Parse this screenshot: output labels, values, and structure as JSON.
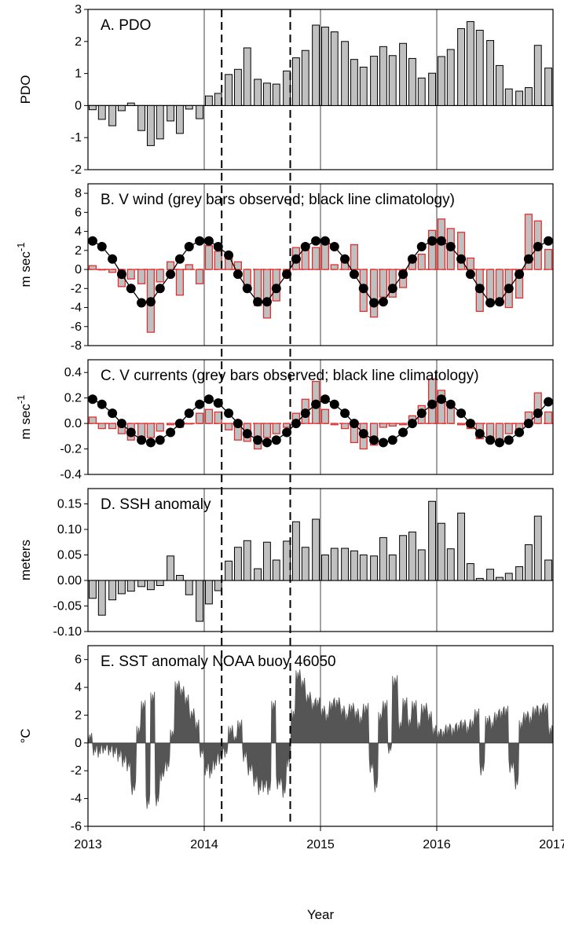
{
  "figure": {
    "xlabel": "Year",
    "xticks": [
      2013,
      2014,
      2015,
      2016,
      2017
    ],
    "xlim": [
      2013,
      2017
    ],
    "vertical_dashed_lines": [
      2014.15,
      2014.74
    ],
    "colors": {
      "bar_fill": "#c0c0c0",
      "bar_outline_gray": "#000000",
      "bar_outline_red": "#e03030",
      "zero_line_red": "#e03030",
      "climatology": "#000000",
      "sst_fill": "#555555"
    }
  },
  "chart_data": [
    {
      "type": "bar",
      "title": "A. PDO",
      "ylabel": "PDO",
      "ylim": [
        -2,
        3
      ],
      "yticks": [
        "-2",
        "-1",
        "0",
        "1",
        "2",
        "3"
      ],
      "x": [
        2013.04,
        2013.12,
        2013.21,
        2013.29,
        2013.37,
        2013.46,
        2013.54,
        2013.62,
        2013.71,
        2013.79,
        2013.87,
        2013.96,
        2014.04,
        2014.12,
        2014.21,
        2014.29,
        2014.37,
        2014.46,
        2014.54,
        2014.62,
        2014.71,
        2014.79,
        2014.87,
        2014.96,
        2015.04,
        2015.12,
        2015.21,
        2015.29,
        2015.37,
        2015.46,
        2015.54,
        2015.62,
        2015.71,
        2015.79,
        2015.87,
        2015.96,
        2016.04,
        2016.12,
        2016.21,
        2016.29,
        2016.37,
        2016.46,
        2016.54,
        2016.62,
        2016.71,
        2016.79,
        2016.87,
        2016.96
      ],
      "values": [
        -0.13,
        -0.43,
        -0.63,
        -0.16,
        0.08,
        -0.78,
        -1.25,
        -1.04,
        -0.48,
        -0.87,
        -0.11,
        -0.41,
        0.3,
        0.38,
        0.97,
        1.13,
        1.8,
        0.82,
        0.7,
        0.67,
        1.08,
        1.49,
        1.72,
        2.51,
        2.45,
        2.3,
        2.0,
        1.44,
        1.2,
        1.54,
        1.84,
        1.56,
        1.94,
        1.47,
        0.86,
        1.01,
        1.53,
        1.75,
        2.4,
        2.62,
        2.35,
        2.03,
        1.25,
        0.52,
        0.45,
        0.56,
        1.88,
        1.17
      ]
    },
    {
      "type": "bar",
      "title": "B. V wind (grey bars observed; black line climatology)",
      "ylabel": "m sec",
      "ylabel_superscript": "-1",
      "ylim": [
        -8,
        9
      ],
      "yticks": [
        "-8",
        "-6",
        "-4",
        "-2",
        "0",
        "2",
        "4",
        "6",
        "8"
      ],
      "x": [
        2013.04,
        2013.12,
        2013.21,
        2013.29,
        2013.37,
        2013.46,
        2013.54,
        2013.62,
        2013.71,
        2013.79,
        2013.87,
        2013.96,
        2014.04,
        2014.12,
        2014.21,
        2014.29,
        2014.37,
        2014.46,
        2014.54,
        2014.62,
        2014.71,
        2014.79,
        2014.87,
        2014.96,
        2015.04,
        2015.12,
        2015.21,
        2015.29,
        2015.37,
        2015.46,
        2015.54,
        2015.62,
        2015.71,
        2015.79,
        2015.87,
        2015.96,
        2016.04,
        2016.12,
        2016.21,
        2016.29,
        2016.37,
        2016.46,
        2016.54,
        2016.62,
        2016.71,
        2016.79,
        2016.87,
        2016.96
      ],
      "values": [
        0.4,
        0.0,
        -0.3,
        -1.8,
        -1.0,
        -1.5,
        -6.6,
        -1.3,
        0.8,
        -2.7,
        0.5,
        -1.5,
        2.5,
        1.9,
        1.4,
        0.8,
        -2.0,
        -3.8,
        -5.1,
        -3.3,
        -0.8,
        2.3,
        2.0,
        2.3,
        3.0,
        0.5,
        0.8,
        2.6,
        -4.4,
        -5.0,
        -2.9,
        -2.9,
        -1.9,
        1.2,
        1.6,
        4.1,
        5.3,
        4.3,
        3.9,
        1.2,
        -4.4,
        -3.2,
        -3.7,
        -4.0,
        -3.0,
        5.8,
        5.1,
        2.1
      ],
      "climatology": [
        3.0,
        2.4,
        1.1,
        -0.5,
        -2.0,
        -3.5,
        -3.4,
        -2.0,
        -0.5,
        1.1,
        2.4,
        3.0,
        3.0,
        2.4,
        1.5,
        -0.5,
        -2.0,
        -3.4,
        -3.4,
        -2.0,
        -0.5,
        1.1,
        2.4,
        3.0,
        3.0,
        2.4,
        1.1,
        -0.5,
        -2.0,
        -3.5,
        -3.4,
        -2.0,
        -0.5,
        1.1,
        2.4,
        3.0,
        3.0,
        2.4,
        1.1,
        -0.5,
        -2.0,
        -3.5,
        -3.4,
        -2.0,
        -0.5,
        1.1,
        2.4,
        3.0
      ]
    },
    {
      "type": "bar",
      "title": "C. V currents (grey bars observed; black line climatology)",
      "ylabel": "m sec",
      "ylabel_superscript": "-1",
      "ylim": [
        -0.4,
        0.5
      ],
      "yticks": [
        "-0.4",
        "-0.2",
        "0.0",
        "0.2",
        "0.4"
      ],
      "x": [
        2013.04,
        2013.12,
        2013.21,
        2013.29,
        2013.37,
        2013.46,
        2013.54,
        2013.62,
        2013.71,
        2013.79,
        2013.87,
        2013.96,
        2014.04,
        2014.12,
        2014.21,
        2014.29,
        2014.37,
        2014.46,
        2014.54,
        2014.62,
        2014.71,
        2014.79,
        2014.87,
        2014.96,
        2015.04,
        2015.12,
        2015.21,
        2015.29,
        2015.37,
        2015.46,
        2015.54,
        2015.62,
        2015.71,
        2015.79,
        2015.87,
        2015.96,
        2016.04,
        2016.12,
        2016.21,
        2016.29,
        2016.37,
        2016.46,
        2016.54,
        2016.62,
        2016.71,
        2016.79,
        2016.87,
        2016.96
      ],
      "values": [
        0.05,
        -0.04,
        -0.04,
        -0.08,
        -0.13,
        -0.14,
        -0.11,
        -0.06,
        -0.01,
        -0.03,
        0.0,
        0.08,
        0.11,
        0.09,
        -0.05,
        -0.13,
        -0.14,
        -0.2,
        -0.11,
        -0.08,
        -0.03,
        0.08,
        0.19,
        0.33,
        0.11,
        -0.01,
        -0.04,
        -0.15,
        -0.2,
        -0.17,
        -0.03,
        -0.02,
        -0.01,
        0.06,
        0.14,
        0.35,
        0.26,
        0.17,
        -0.01,
        -0.04,
        -0.12,
        -0.14,
        -0.15,
        -0.08,
        -0.06,
        0.09,
        0.24,
        0.09
      ],
      "climatology": [
        0.19,
        0.15,
        0.08,
        0.0,
        -0.07,
        -0.13,
        -0.15,
        -0.13,
        -0.07,
        0.0,
        0.08,
        0.15,
        0.19,
        0.16,
        0.08,
        0.0,
        -0.08,
        -0.13,
        -0.15,
        -0.13,
        -0.07,
        0.0,
        0.08,
        0.15,
        0.19,
        0.15,
        0.08,
        0.0,
        -0.08,
        -0.13,
        -0.15,
        -0.13,
        -0.07,
        0.0,
        0.08,
        0.15,
        0.19,
        0.15,
        0.08,
        0.0,
        -0.08,
        -0.13,
        -0.15,
        -0.13,
        -0.07,
        0.0,
        0.08,
        0.17
      ]
    },
    {
      "type": "bar",
      "title": "D. SSH anomaly",
      "ylabel": "meters",
      "ylim": [
        -0.1,
        0.18
      ],
      "yticks": [
        "-0.10",
        "-0.05",
        "0.00",
        "0.05",
        "0.10",
        "0.15"
      ],
      "x": [
        2013.04,
        2013.12,
        2013.21,
        2013.29,
        2013.37,
        2013.46,
        2013.54,
        2013.62,
        2013.71,
        2013.79,
        2013.87,
        2013.96,
        2014.04,
        2014.12,
        2014.21,
        2014.29,
        2014.37,
        2014.46,
        2014.54,
        2014.62,
        2014.71,
        2014.79,
        2014.87,
        2014.96,
        2015.04,
        2015.12,
        2015.21,
        2015.29,
        2015.37,
        2015.46,
        2015.54,
        2015.62,
        2015.71,
        2015.79,
        2015.87,
        2015.96,
        2016.04,
        2016.12,
        2016.21,
        2016.29,
        2016.37,
        2016.46,
        2016.54,
        2016.62,
        2016.71,
        2016.79,
        2016.87,
        2016.96
      ],
      "values": [
        -0.035,
        -0.068,
        -0.038,
        -0.026,
        -0.021,
        -0.012,
        -0.018,
        -0.01,
        0.048,
        0.01,
        -0.028,
        -0.08,
        -0.046,
        -0.02,
        0.038,
        0.065,
        0.078,
        0.023,
        0.075,
        0.04,
        0.077,
        0.115,
        0.065,
        0.12,
        0.05,
        0.063,
        0.063,
        0.058,
        0.05,
        0.048,
        0.084,
        0.05,
        0.088,
        0.095,
        0.06,
        0.155,
        0.112,
        0.062,
        0.132,
        0.033,
        0.004,
        0.022,
        0.006,
        0.014,
        0.027,
        0.07,
        0.126,
        0.04
      ]
    },
    {
      "type": "area",
      "title": "E. SST anomaly NOAA buoy 46050",
      "ylabel": "°C",
      "ylim": [
        -6,
        7
      ],
      "yticks": [
        "-6",
        "-4",
        "-2",
        "0",
        "2",
        "4",
        "6"
      ],
      "x": [
        2013.0,
        2013.04,
        2013.08,
        2013.12,
        2013.17,
        2013.21,
        2013.25,
        2013.29,
        2013.33,
        2013.37,
        2013.42,
        2013.46,
        2013.5,
        2013.54,
        2013.58,
        2013.62,
        2013.67,
        2013.71,
        2013.75,
        2013.79,
        2013.83,
        2013.87,
        2013.92,
        2013.96,
        2014.0,
        2014.04,
        2014.08,
        2014.12,
        2014.17,
        2014.21,
        2014.25,
        2014.29,
        2014.33,
        2014.37,
        2014.42,
        2014.46,
        2014.5,
        2014.54,
        2014.58,
        2014.62,
        2014.67,
        2014.71,
        2014.75,
        2014.79,
        2014.83,
        2014.87,
        2014.92,
        2014.96,
        2015.0,
        2015.04,
        2015.08,
        2015.12,
        2015.17,
        2015.21,
        2015.25,
        2015.29,
        2015.33,
        2015.37,
        2015.42,
        2015.46,
        2015.5,
        2015.54,
        2015.58,
        2015.62,
        2015.67,
        2015.71,
        2015.75,
        2015.79,
        2015.83,
        2015.87,
        2015.92,
        2015.96,
        2016.0,
        2016.04,
        2016.08,
        2016.12,
        2016.17,
        2016.21,
        2016.25,
        2016.29,
        2016.33,
        2016.37,
        2016.42,
        2016.46,
        2016.5,
        2016.54,
        2016.58,
        2016.62,
        2016.67,
        2016.71,
        2016.75,
        2016.79,
        2016.83,
        2016.87,
        2016.92,
        2016.96,
        2017.0
      ],
      "values": [
        0.4,
        -0.5,
        -0.6,
        -0.4,
        -0.5,
        -0.6,
        -0.8,
        -1.2,
        -1.5,
        -3.2,
        0.8,
        2.6,
        -4.2,
        3.2,
        -4.0,
        -2.2,
        -1.5,
        0.6,
        4.0,
        3.6,
        3.0,
        2.0,
        1.2,
        -0.6,
        -1.8,
        -2.0,
        -1.4,
        -1.0,
        -0.6,
        0.8,
        0.3,
        1.2,
        -0.8,
        -1.8,
        -2.6,
        -3.2,
        -3.0,
        -3.2,
        2.6,
        -2.8,
        -3.4,
        -1.2,
        2.0,
        4.8,
        4.2,
        3.2,
        2.6,
        2.8,
        2.2,
        1.8,
        2.6,
        2.8,
        2.2,
        1.8,
        2.4,
        2.0,
        1.6,
        2.4,
        -1.6,
        -3.0,
        1.8,
        2.6,
        -0.4,
        4.4,
        1.2,
        2.8,
        1.4,
        2.6,
        1.2,
        2.4,
        1.8,
        0.8,
        0.6,
        0.6,
        0.9,
        0.8,
        1.0,
        1.2,
        0.9,
        1.3,
        2.0,
        -1.8,
        1.5,
        1.2,
        1.8,
        2.0,
        2.2,
        -1.6,
        -2.8,
        1.2,
        1.8,
        1.6,
        2.2,
        2.2,
        2.4,
        0.8,
        0.5
      ]
    }
  ]
}
